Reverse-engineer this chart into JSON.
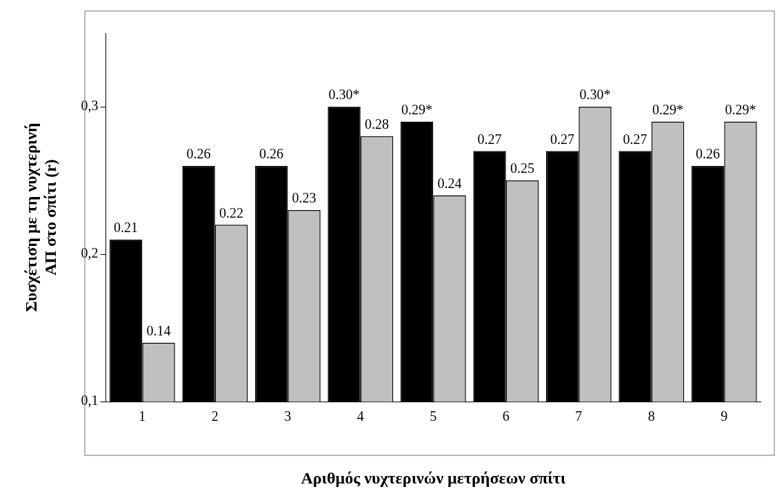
{
  "chart_data": {
    "type": "bar",
    "xlabel": "Αριθμός νυχτερινών μετρήσεων σπίτι",
    "ylabel": "Συσχέτιση με τη νυχτερινή\nΑΠ στο σπίτι (r)",
    "categories": [
      "1",
      "2",
      "3",
      "4",
      "5",
      "6",
      "7",
      "8",
      "9"
    ],
    "series": [
      {
        "color": "#000000",
        "values": [
          0.21,
          0.26,
          0.26,
          0.3,
          0.29,
          0.27,
          0.27,
          0.27,
          0.26
        ],
        "value_labels": [
          "0.21",
          "0.26",
          "0.26",
          "0.30*",
          "0.29*",
          "0.27",
          "0.27",
          "0.27",
          "0.26"
        ]
      },
      {
        "color": "#c0c0c0",
        "values": [
          0.14,
          0.22,
          0.23,
          0.28,
          0.24,
          0.25,
          0.3,
          0.29,
          0.29
        ],
        "value_labels": [
          "0.14",
          "0.22",
          "0.23",
          "0.28",
          "0.24",
          "0.25",
          "0.30*",
          "0.29*",
          "0.29*"
        ]
      }
    ],
    "ylim": [
      0.1,
      0.35
    ],
    "yticks": [
      {
        "value": 0.1,
        "label": "0,1"
      },
      {
        "value": 0.2,
        "label": "0,2"
      },
      {
        "value": 0.3,
        "label": "0,3"
      }
    ],
    "grid": false,
    "legend": false
  }
}
